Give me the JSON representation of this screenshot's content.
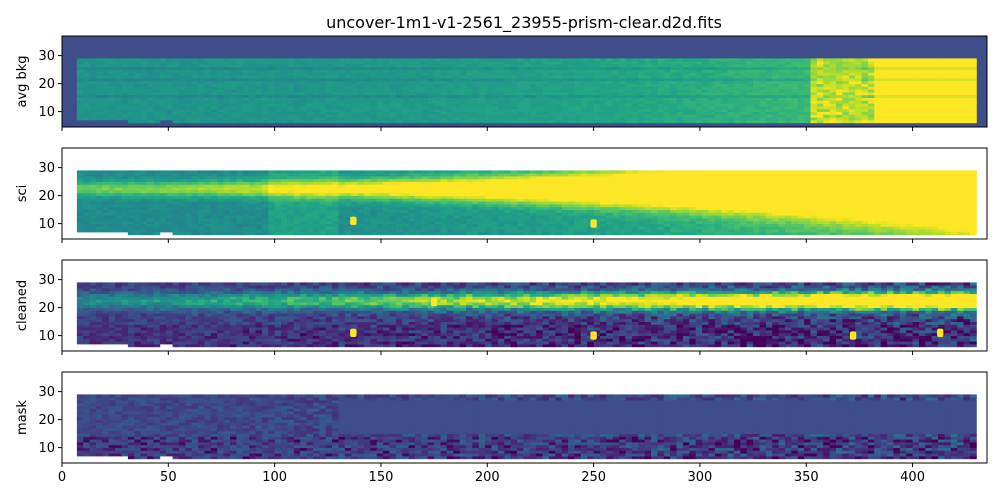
{
  "chart_data": {
    "type": "heatmap",
    "title": "uncover-1m1-v1-2561_23955-prism-clear.d2d.fits",
    "colormap": "viridis",
    "background_color": "#3f4e8a",
    "xlim": [
      0,
      435
    ],
    "x_ticks": [
      0,
      50,
      100,
      150,
      200,
      250,
      300,
      350,
      400
    ],
    "sharex": true,
    "panels": [
      {
        "ylabel": "avg bkg",
        "ylim": [
          4.5,
          37
        ],
        "y_ticks": [
          10,
          20,
          30
        ],
        "data_extent": {
          "x": [
            7,
            428
          ],
          "y": [
            6,
            29
          ]
        },
        "description": "smooth gradient; values rising to the right, saturated beyond x~380",
        "sources": []
      },
      {
        "ylabel": "sci",
        "ylim": [
          4.5,
          37
        ],
        "y_ticks": [
          10,
          20,
          30
        ],
        "data_extent": {
          "x": [
            7,
            428
          ],
          "y": [
            6,
            29
          ]
        },
        "trace_row": 22,
        "sources": [
          {
            "x": 137,
            "y": 11
          },
          {
            "x": 175,
            "y": 22
          },
          {
            "x": 250,
            "y": 10
          }
        ]
      },
      {
        "ylabel": "cleaned",
        "ylim": [
          4.5,
          37
        ],
        "y_ticks": [
          10,
          20,
          30
        ],
        "data_extent": {
          "x": [
            7,
            428
          ],
          "y": [
            6,
            29
          ]
        },
        "trace_row": 22,
        "sources": [
          {
            "x": 137,
            "y": 11
          },
          {
            "x": 175,
            "y": 22
          },
          {
            "x": 250,
            "y": 10
          },
          {
            "x": 372,
            "y": 10
          },
          {
            "x": 413,
            "y": 11
          }
        ]
      },
      {
        "ylabel": "mask",
        "ylim": [
          4.5,
          37
        ],
        "y_ticks": [
          10,
          20,
          30
        ],
        "data_extent": {
          "x": [
            7,
            428
          ],
          "y": [
            6,
            29
          ]
        },
        "masked_region": {
          "x": [
            130,
            428
          ],
          "y": [
            15,
            26
          ]
        },
        "sources": []
      }
    ]
  }
}
